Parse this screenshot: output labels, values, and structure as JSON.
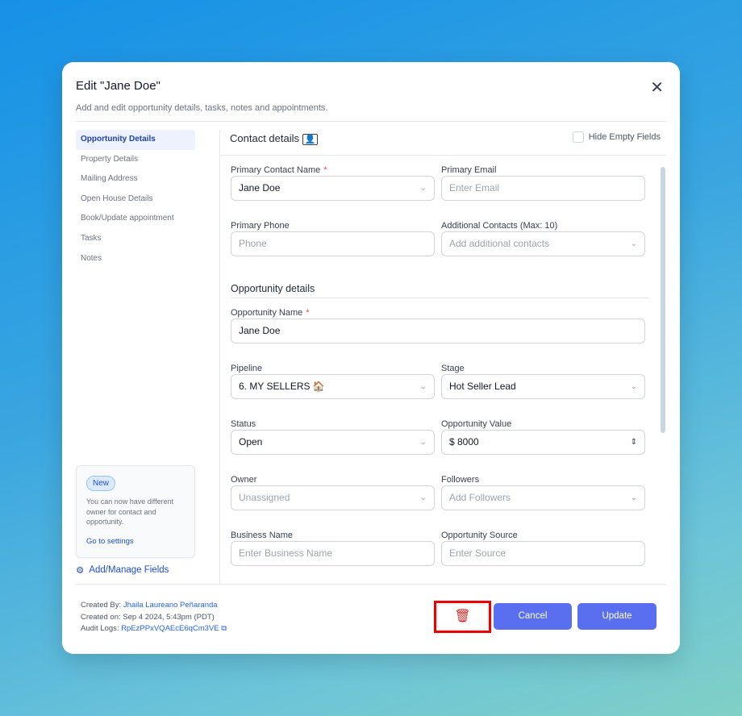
{
  "modal": {
    "title": "Edit \"Jane Doe\"",
    "subtitle": "Add and edit opportunity details, tasks, notes and appointments.",
    "close_icon": "close-icon"
  },
  "sidebar": {
    "items": [
      {
        "label": "Opportunity Details",
        "active": true
      },
      {
        "label": "Property Details"
      },
      {
        "label": "Mailing Address"
      },
      {
        "label": "Open House Details"
      },
      {
        "label": "Book/Update appointment"
      },
      {
        "label": "Tasks"
      },
      {
        "label": "Notes"
      }
    ],
    "promo": {
      "badge": "New",
      "text": "You can now have different owner for contact and opportunity.",
      "link": "Go to settings"
    },
    "manage_fields": "Add/Manage Fields"
  },
  "panel": {
    "header": "Contact details",
    "hide_empty": "Hide Empty Fields",
    "hide_empty_checked": false,
    "section": "Opportunity details",
    "fields": {
      "primary_contact": {
        "label": "Primary Contact Name",
        "value": "Jane Doe"
      },
      "primary_email": {
        "label": "Primary Email",
        "placeholder": "Enter Email"
      },
      "primary_phone": {
        "label": "Primary Phone",
        "placeholder": "Phone"
      },
      "additional_contacts": {
        "label": "Additional Contacts (Max: 10)",
        "placeholder": "Add additional contacts"
      },
      "opportunity_name": {
        "label": "Opportunity Name",
        "value": "Jane Doe"
      },
      "pipeline": {
        "label": "Pipeline",
        "value": "6. MY SELLERS 🏠"
      },
      "stage": {
        "label": "Stage",
        "value": "Hot Seller Lead"
      },
      "status": {
        "label": "Status",
        "value": "Open"
      },
      "value": {
        "label": "Opportunity Value",
        "value": "$ 8000"
      },
      "owner": {
        "label": "Owner",
        "value": "Unassigned"
      },
      "followers": {
        "label": "Followers",
        "placeholder": "Add Followers"
      },
      "business": {
        "label": "Business Name",
        "placeholder": "Enter Business Name"
      },
      "source": {
        "label": "Opportunity Source",
        "placeholder": "Enter Source"
      }
    }
  },
  "footer": {
    "created_by_label": "Created By:",
    "created_by": "Jhaila Laureano Peñaranda",
    "created_on": "Created on: Sep 4 2024, 5:43pm (PDT)",
    "audit_label": "Audit Logs:",
    "audit_id": "RpEzPPxVQAEcE6qCm3VE",
    "cancel": "Cancel",
    "update": "Update"
  },
  "colors": {
    "primary": "#5a6ff0",
    "danger": "#dc2626",
    "highlight": "#ee0000"
  }
}
